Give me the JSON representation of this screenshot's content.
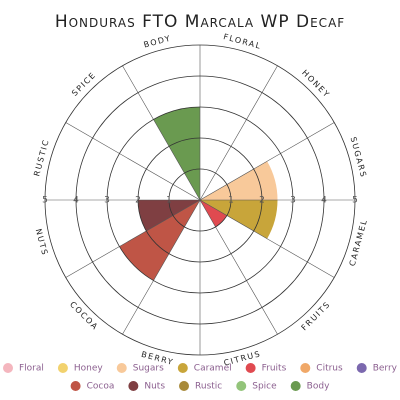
{
  "chart_data": {
    "type": "polar",
    "title": "Honduras FTO Marcala WP Decaf",
    "categories": [
      "Floral",
      "Honey",
      "Sugars",
      "Caramel",
      "Fruits",
      "Citrus",
      "Berry",
      "Cocoa",
      "Nuts",
      "Rustic",
      "Spice",
      "Body"
    ],
    "values": [
      0,
      0,
      2.5,
      2.5,
      1,
      0,
      0,
      3,
      2,
      0,
      0,
      3
    ],
    "colors": [
      "#f4b6be",
      "#f2d26e",
      "#f8c99a",
      "#c8a53a",
      "#e04a50",
      "#f0a868",
      "#7b68ae",
      "#bf5546",
      "#7f3f42",
      "#a88a3a",
      "#93c47a",
      "#6a9a50"
    ],
    "rlim": [
      0,
      5
    ],
    "rticks": [
      1,
      2,
      3,
      4,
      5
    ]
  }
}
